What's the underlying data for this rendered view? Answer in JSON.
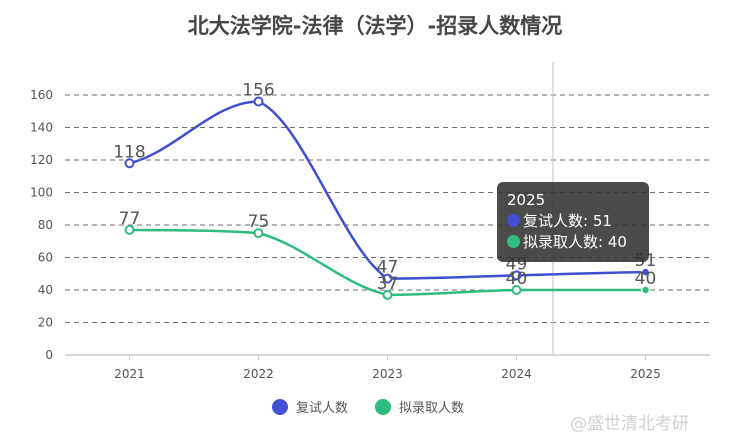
{
  "chart_data": {
    "type": "line",
    "title": "北大法学院-法律（法学）-招录人数情况",
    "categories": [
      "2021",
      "2022",
      "2023",
      "2024",
      "2025"
    ],
    "xlabel": "",
    "ylabel": "",
    "ylim": [
      0,
      160
    ],
    "yticks": [
      "0",
      "20",
      "40",
      "60",
      "80",
      "100",
      "120",
      "140",
      "160"
    ],
    "grid": true,
    "smooth": true,
    "legend_position": "bottom",
    "series": [
      {
        "name": "复试人数",
        "color": "#4150d0",
        "values": [
          118,
          156,
          47,
          49,
          51
        ],
        "labels": [
          "118",
          "156",
          "47",
          "49",
          "51"
        ]
      },
      {
        "name": "拟录取人数",
        "color": "#2dbd7e",
        "values": [
          77,
          75,
          37,
          40,
          40
        ],
        "labels": [
          "77",
          "75",
          "37",
          "40",
          "40"
        ]
      }
    ]
  },
  "tooltip": {
    "title": "2025",
    "rows": [
      {
        "label": "复试人数: 51",
        "color": "#4150d0"
      },
      {
        "label": "拟录取人数: 40",
        "color": "#2dbd7e"
      }
    ]
  },
  "watermark": "@盛世清北考研"
}
